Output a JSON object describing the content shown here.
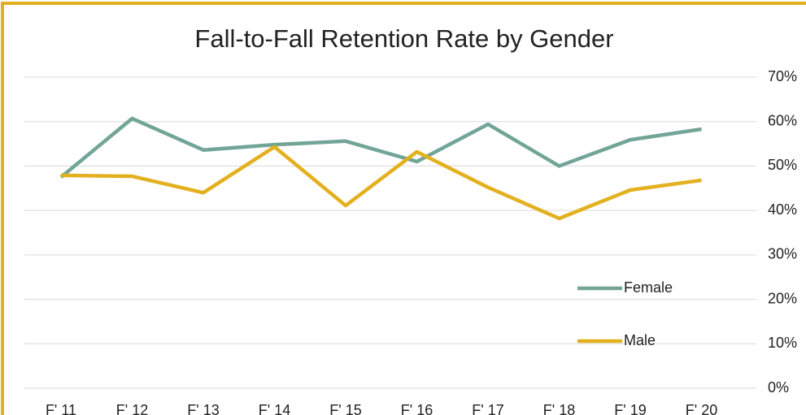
{
  "chart_data": {
    "type": "line",
    "title": "Fall-to-Fall Retention Rate by Gender",
    "categories": [
      "F' 11",
      "F' 12",
      "F' 13",
      "F' 14",
      "F' 15",
      "F' 16",
      "F' 17",
      "F' 18",
      "F' 19",
      "F' 20"
    ],
    "series": [
      {
        "name": "Female",
        "color": "#72a596",
        "values": [
          47.5,
          60.7,
          53.6,
          54.8,
          55.6,
          51,
          59.4,
          50,
          55.9,
          58.3
        ]
      },
      {
        "name": "Male",
        "color": "#e3b01f",
        "values": [
          47.9,
          47.7,
          44,
          54.3,
          41.1,
          53.2,
          45.2,
          38.2,
          44.6,
          46.8
        ]
      }
    ],
    "ylim": [
      0,
      70
    ],
    "yticks": [
      {
        "value": 0,
        "label": "0%"
      },
      {
        "value": 10,
        "label": "10%"
      },
      {
        "value": 20,
        "label": "20%"
      },
      {
        "value": 30,
        "label": "30%"
      },
      {
        "value": 40,
        "label": "40%"
      },
      {
        "value": 50,
        "label": "50%"
      },
      {
        "value": 60,
        "label": "60%"
      },
      {
        "value": 70,
        "label": "70%"
      }
    ],
    "grid": true
  }
}
